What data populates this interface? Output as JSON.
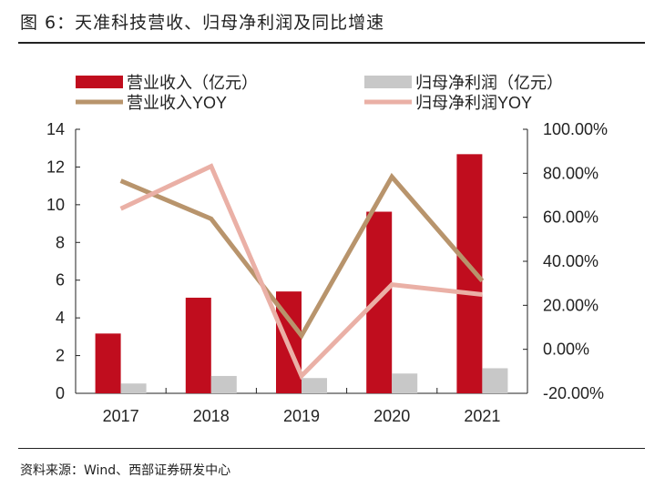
{
  "title": "图 6：天准科技营收、归母净利润及同比增速",
  "source": "资料来源：Wind、西部证券研发中心",
  "chart_data": {
    "type": "bar+line",
    "categories": [
      "2017",
      "2018",
      "2019",
      "2020",
      "2021"
    ],
    "left_axis": {
      "ylim": [
        0,
        14
      ],
      "ticks": [
        "0",
        "2",
        "4",
        "6",
        "8",
        "10",
        "12",
        "14"
      ]
    },
    "right_axis": {
      "ylim": [
        -20,
        100
      ],
      "ticks": [
        "-20.00%",
        "0.00%",
        "20.00%",
        "40.00%",
        "60.00%",
        "80.00%",
        "100.00%"
      ]
    },
    "series": [
      {
        "name": "营业收入（亿元）",
        "type": "bar",
        "axis": "left",
        "color": "#c00d1e",
        "values": [
          3.17,
          5.07,
          5.4,
          9.63,
          12.68
        ]
      },
      {
        "name": "归母净利润（亿元）",
        "type": "bar",
        "axis": "left",
        "color": "#c8c8c8",
        "values": [
          0.52,
          0.92,
          0.81,
          1.05,
          1.33
        ]
      },
      {
        "name": "营业收入YOY",
        "type": "line",
        "axis": "right",
        "color": "#b8946c",
        "values": [
          76.6,
          59.3,
          6.2,
          78.4,
          31.1
        ]
      },
      {
        "name": "归母净利润YOY",
        "type": "line",
        "axis": "right",
        "color": "#eab0a6",
        "values": [
          63.9,
          83.2,
          -12.1,
          29.4,
          24.9
        ]
      }
    ],
    "legend": "top",
    "grid": false
  }
}
